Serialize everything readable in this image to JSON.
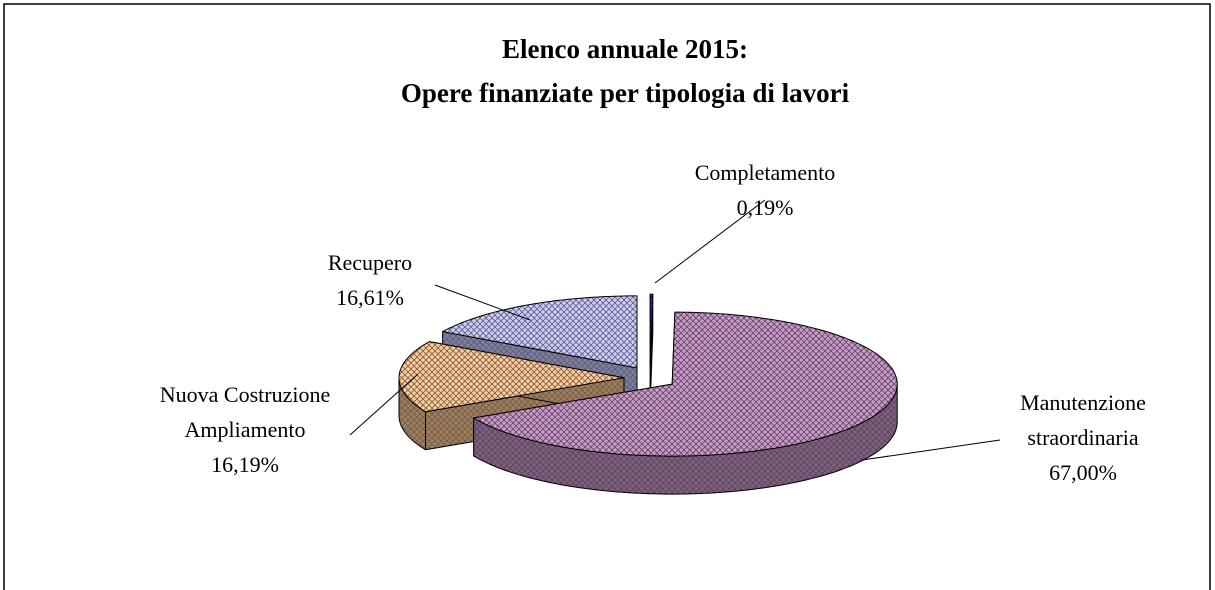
{
  "chart_data": {
    "type": "pie",
    "title": "Elenco annuale 2015:",
    "subtitle": "Opere finanziate per tipologia di lavori",
    "categories": [
      "Completamento",
      "Manutenzione\nstraordinaria",
      "Nuova Costruzione\nAmpliamento",
      "Recupero"
    ],
    "values": [
      0.19,
      67.0,
      16.19,
      16.61
    ],
    "value_labels": [
      "0,19%",
      "67,00%",
      "16,19%",
      "16,61%"
    ],
    "colors": [
      "#3333cc",
      "#cc99cc",
      "#ffcc99",
      "#ccccff"
    ]
  }
}
